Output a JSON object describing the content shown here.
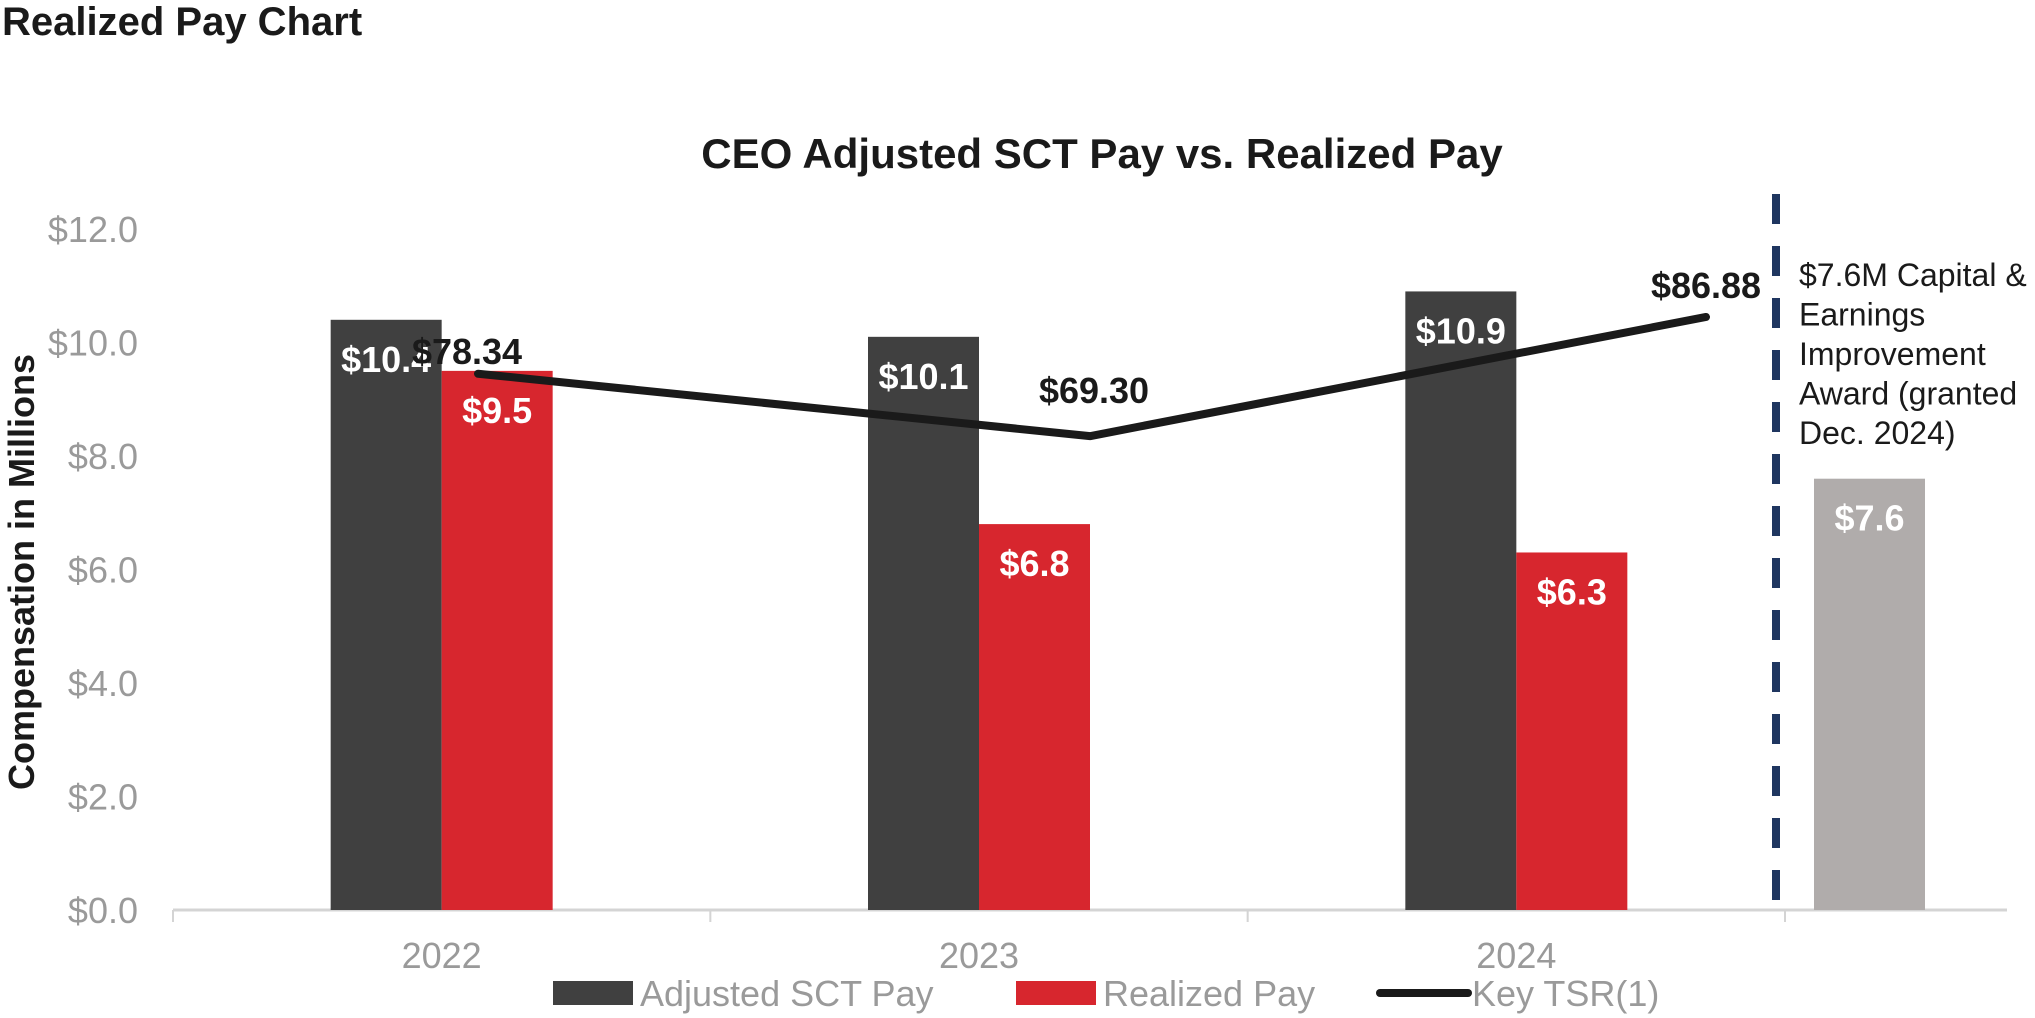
{
  "page": {
    "title": "Realized Pay Chart"
  },
  "chart_data": {
    "type": "bar",
    "title": "CEO Adjusted SCT Pay vs. Realized Pay",
    "ylabel": "Compensation in Millions",
    "xlabel": "",
    "ylim": [
      0,
      12
    ],
    "yticks": [
      0,
      2,
      4,
      6,
      8,
      10,
      12
    ],
    "ytick_labels": [
      "$0.0",
      "$2.0",
      "$4.0",
      "$6.0",
      "$8.0",
      "$10.0",
      "$12.0"
    ],
    "categories": [
      "2022",
      "2023",
      "2024"
    ],
    "series": [
      {
        "name": "Adjusted SCT Pay",
        "color": "#404040",
        "values": [
          10.4,
          10.1,
          10.9
        ],
        "labels": [
          "$10.4",
          "$10.1",
          "$10.9"
        ]
      },
      {
        "name": "Realized Pay",
        "color": "#d7262e",
        "values": [
          9.5,
          6.8,
          6.3
        ],
        "labels": [
          "$9.5",
          "$6.8",
          "$6.3"
        ]
      }
    ],
    "line": {
      "name": "Key TSR(1)",
      "color": "#1a1a1a",
      "values": [
        9.45,
        8.35,
        10.45
      ],
      "labels": [
        "$78.34",
        "$69.30",
        "$86.88"
      ]
    },
    "extra_bar": {
      "value": 7.6,
      "label": "$7.6",
      "color": "#b0acab",
      "annotation": [
        "$7.6M Capital &",
        "Earnings",
        "Improvement",
        "Award (granted",
        "Dec. 2024)"
      ]
    },
    "divider_color": "#1f3660",
    "legend_position": "bottom"
  }
}
